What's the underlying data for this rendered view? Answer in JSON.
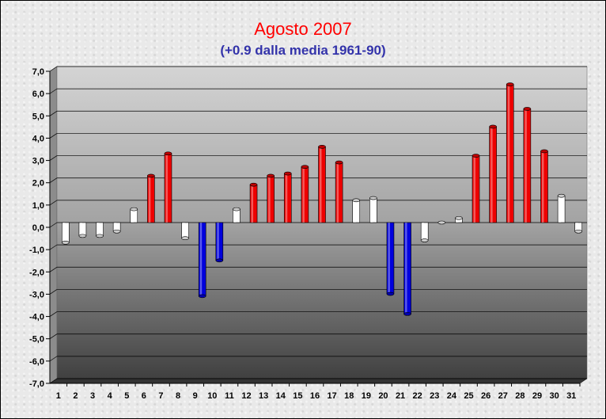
{
  "title": "Agosto 2007",
  "subtitle": "(+0.9 dalla media 1961-90)",
  "colors": {
    "above": "#ee0000",
    "below": "#0000dd",
    "neutral": "#ffffff"
  },
  "chart_data": {
    "type": "bar",
    "title": "Agosto 2007",
    "subtitle": "(+0.9 dalla media 1961-90)",
    "xlabel": "",
    "ylabel": "",
    "ylim": [
      -7,
      7
    ],
    "grid": true,
    "legend": "none",
    "y_tick_labels": [
      "7,0",
      "6,0",
      "5,0",
      "4,0",
      "3,0",
      "2,0",
      "1,0",
      "0,0",
      "-1,0",
      "-2,0",
      "-3,0",
      "-4,0",
      "-5,0",
      "-6,0",
      "-7,0"
    ],
    "categories": [
      "1",
      "2",
      "3",
      "4",
      "5",
      "6",
      "7",
      "8",
      "9",
      "10",
      "11",
      "12",
      "13",
      "14",
      "15",
      "16",
      "17",
      "18",
      "19",
      "20",
      "21",
      "22",
      "23",
      "24",
      "25",
      "26",
      "27",
      "28",
      "29",
      "30",
      "31"
    ],
    "values": [
      -0.9,
      -0.6,
      -0.6,
      -0.4,
      0.6,
      2.1,
      3.1,
      -0.7,
      -3.3,
      -1.7,
      0.6,
      1.7,
      2.1,
      2.2,
      2.5,
      3.4,
      2.7,
      1.0,
      1.1,
      -3.2,
      -4.1,
      -0.8,
      0.0,
      0.2,
      3.0,
      4.3,
      6.2,
      5.1,
      3.2,
      1.2,
      -0.4
    ]
  }
}
